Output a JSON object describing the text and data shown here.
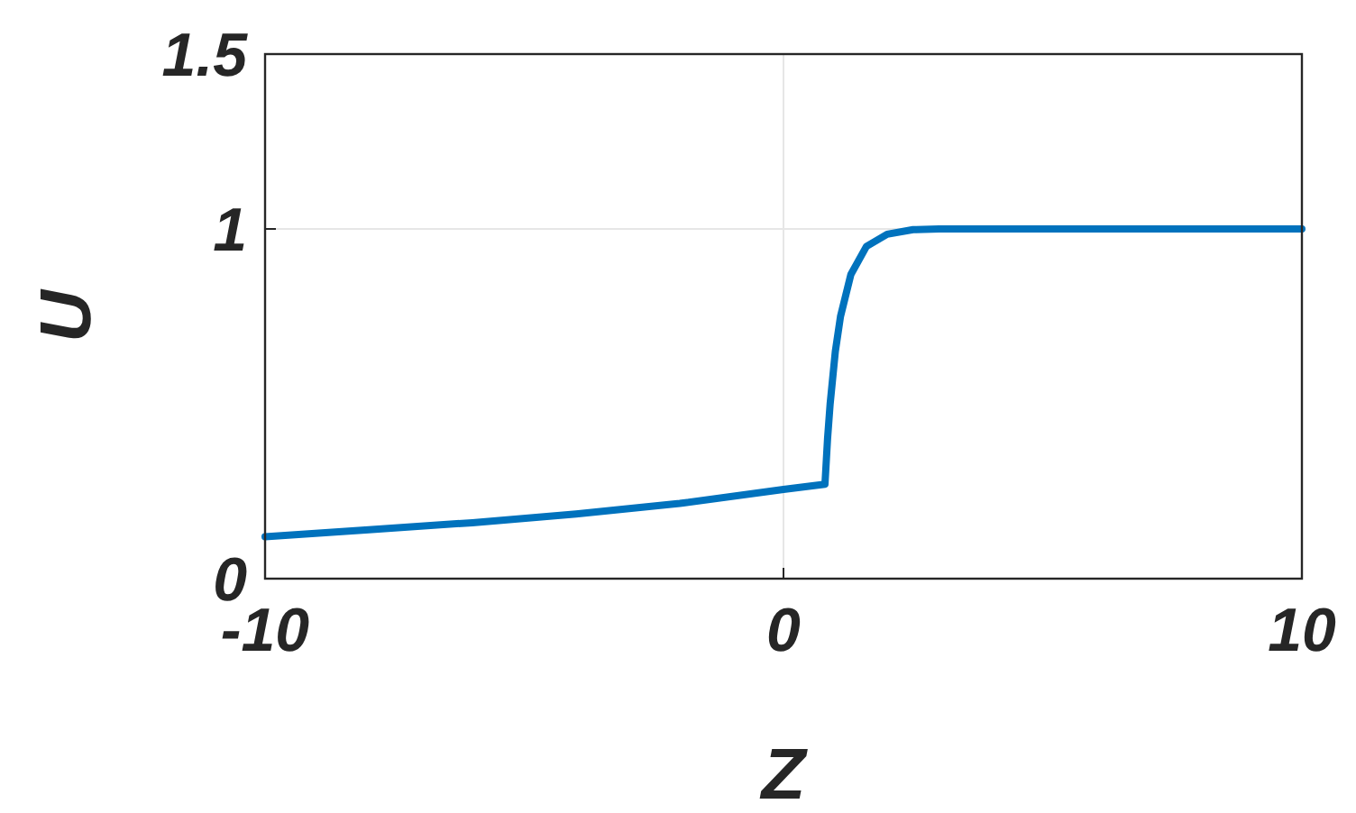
{
  "chart_data": {
    "type": "line",
    "xlabel": "Z",
    "ylabel": "U",
    "x": [
      -10,
      -8,
      -6,
      -4,
      -2,
      0,
      0.8,
      0.85,
      0.9,
      1.0,
      1.1,
      1.3,
      1.6,
      2.0,
      2.5,
      3,
      10
    ],
    "series": [
      {
        "color": "#0072bd",
        "values": [
          0.12,
          0.14,
          0.16,
          0.185,
          0.215,
          0.255,
          0.27,
          0.4,
          0.5,
          0.65,
          0.75,
          0.87,
          0.95,
          0.985,
          0.998,
          1,
          1
        ]
      }
    ],
    "xlim": [
      -10,
      10
    ],
    "xticks": [
      -10,
      0,
      10
    ],
    "ylim": [
      0,
      1.5
    ],
    "yticks": [
      0,
      1,
      1.5
    ],
    "grid": true,
    "line_style": "solid",
    "marker": "none"
  }
}
